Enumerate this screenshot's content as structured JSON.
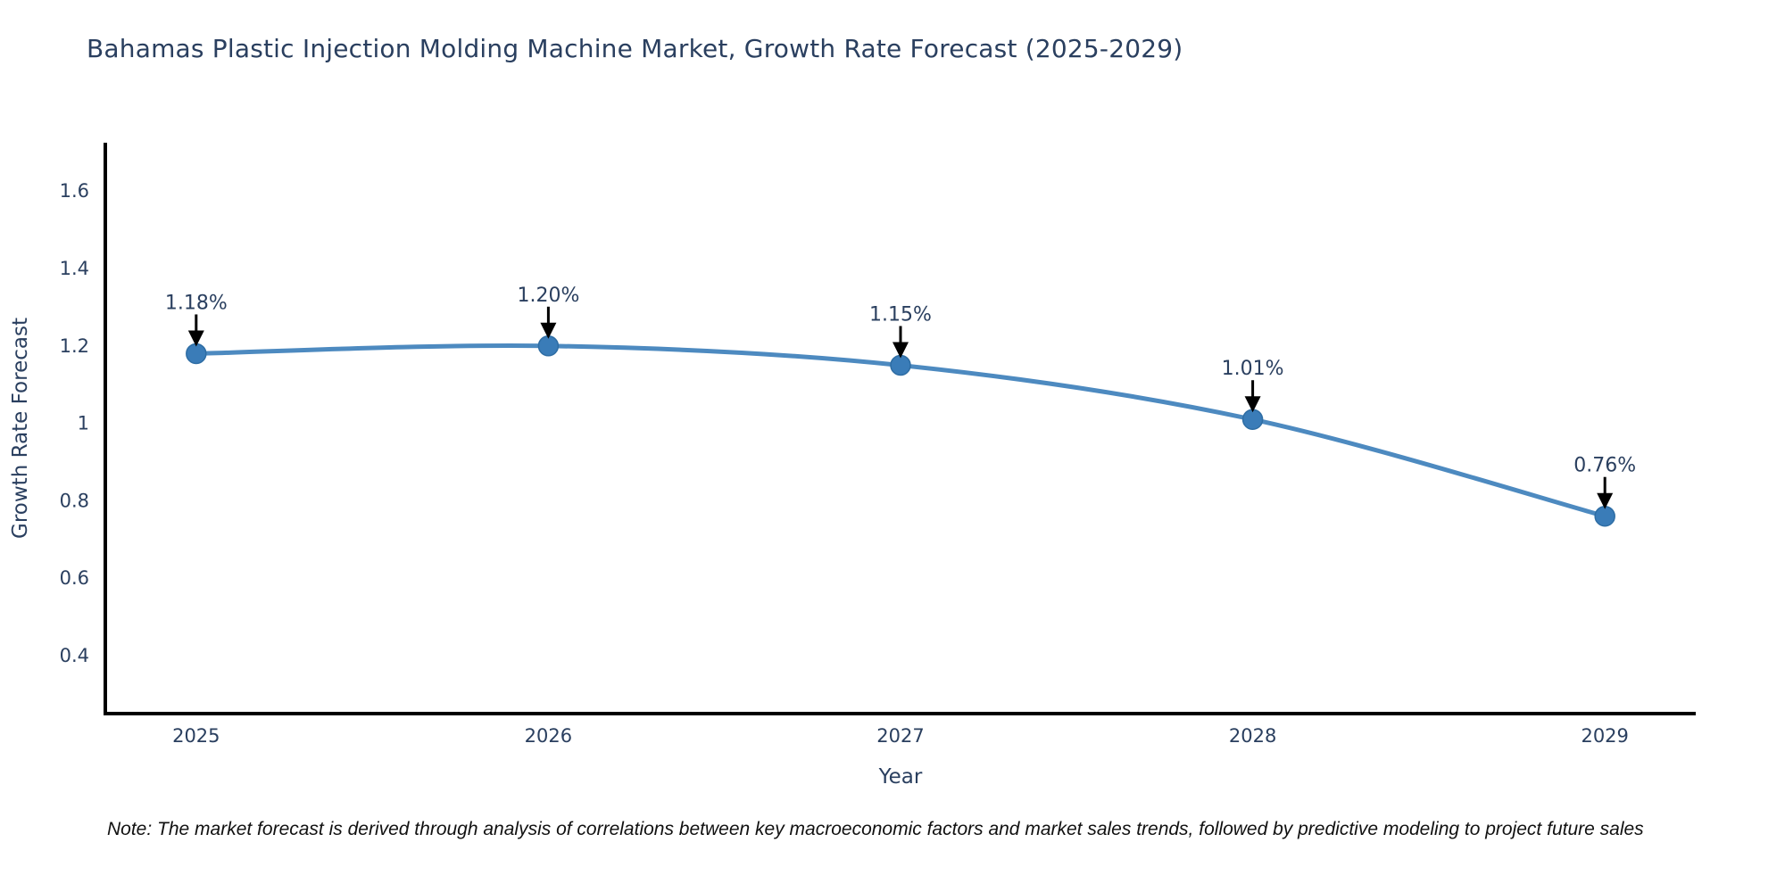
{
  "title": {
    "text": "Bahamas Plastic Injection Molding Machine Market, Growth Rate Forecast (2025-2029)",
    "color": "#2a3f5f"
  },
  "note": {
    "text": "Note: The market forecast is derived through analysis of correlations between key macroeconomic factors and market sales trends, followed by predictive modeling to project future sales"
  },
  "chart_data": {
    "type": "line",
    "title": "Bahamas Plastic Injection Molding Machine Market, Growth Rate Forecast (2025-2029)",
    "xlabel": "Year",
    "ylabel": "Growth Rate Forecast",
    "x": [
      2025,
      2026,
      2027,
      2028,
      2029
    ],
    "values": [
      1.18,
      1.2,
      1.15,
      1.01,
      0.76
    ],
    "point_labels": [
      "1.18%",
      "1.20%",
      "1.15%",
      "1.01%",
      "0.76%"
    ],
    "xtick_labels": [
      "2025",
      "2026",
      "2027",
      "2028",
      "2029"
    ],
    "ytick_values": [
      0.4,
      0.6,
      0.8,
      1.0,
      1.2,
      1.4,
      1.6
    ],
    "ytick_labels": [
      "0.4",
      "0.6",
      "0.8",
      "1",
      "1.2",
      "1.4",
      "1.6"
    ],
    "xlim": [
      2024.742,
      2029.258
    ],
    "ylim": [
      0.25,
      1.725
    ],
    "line_shape": "spline",
    "grid": false,
    "legend": "none",
    "colors": {
      "line": "#4d8ac0",
      "marker": "#3a7cb8",
      "marker_edge": "#2e6da4",
      "axis_line": "#000000",
      "tick_label": "#2a3f5f",
      "axis_title": "#2a3f5f",
      "annotation_text": "#2a3f5f",
      "arrow": "#000000",
      "background": "#ffffff"
    }
  }
}
